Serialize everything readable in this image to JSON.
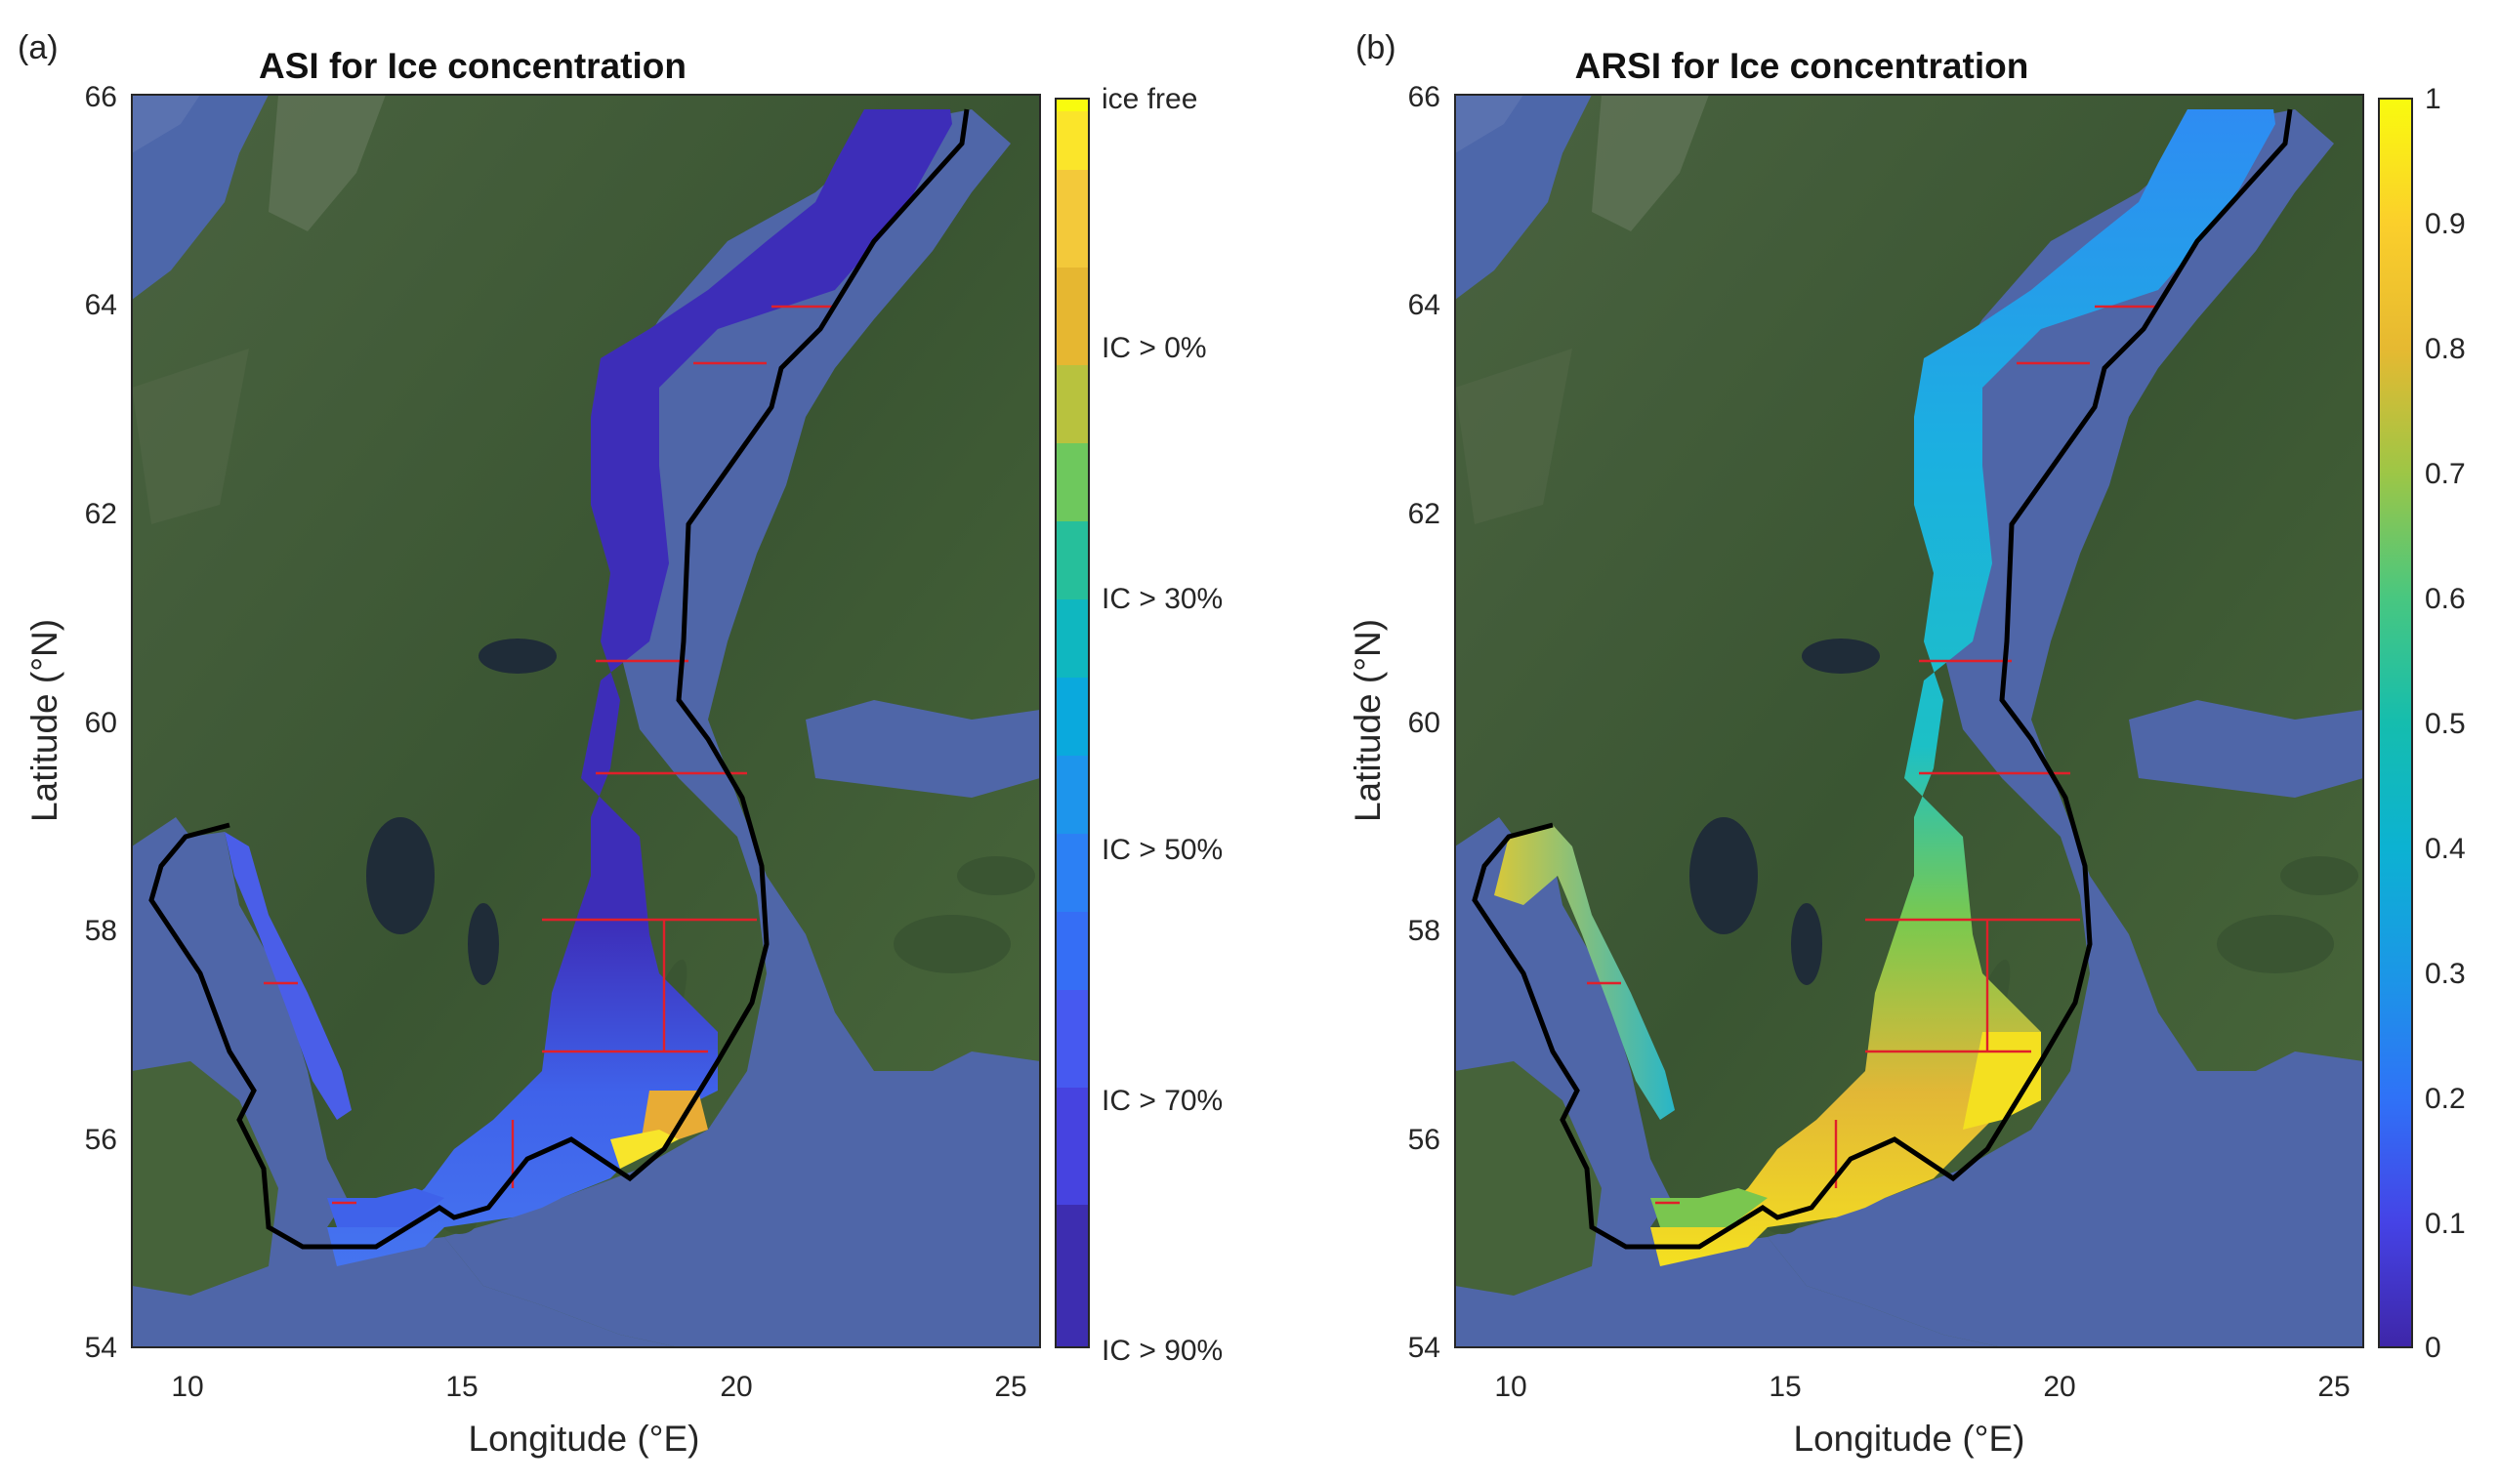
{
  "figure": {
    "panels": [
      {
        "id": "a",
        "panel_label": "(a)",
        "title": "ASI for Ice concentration",
        "xlabel": "Longitude (°E)",
        "ylabel": "Latitude (°N)",
        "x_ticks": [
          "10",
          "15",
          "20",
          "25"
        ],
        "y_ticks": [
          "54",
          "56",
          "58",
          "60",
          "62",
          "64",
          "66"
        ],
        "colorbar": {
          "type": "categorical",
          "labels": [
            "ice free",
            "IC > 0%",
            "IC > 30%",
            "IC > 50%",
            "IC > 70%",
            "IC > 90%"
          ]
        }
      },
      {
        "id": "b",
        "panel_label": "(b)",
        "title": "ARSI for Ice concentration",
        "xlabel": "Longitude (°E)",
        "ylabel": "Latitude (°N)",
        "x_ticks": [
          "10",
          "15",
          "20",
          "25"
        ],
        "y_ticks": [
          "54",
          "56",
          "58",
          "60",
          "62",
          "64",
          "66"
        ],
        "colorbar": {
          "type": "continuous",
          "labels": [
            "1",
            "0.9",
            "0.8",
            "0.7",
            "0.6",
            "0.5",
            "0.4",
            "0.3",
            "0.2",
            "0.1",
            "0"
          ]
        }
      }
    ],
    "colors": {
      "land": "#3f5a34",
      "land_dark": "#2c4226",
      "sea": "#4f66a8",
      "boundary": "#000000",
      "grid_lines": "#e0202a",
      "ice_high": "#3d2db8",
      "ice_mid": "#3f72ef",
      "ice_low": "#e8ac35",
      "ice_very_low": "#f8e52a",
      "arsi_low": "#2ba3f3",
      "arsi_mid": "#7fc64a",
      "arsi_high": "#f1bc36",
      "arsi_max": "#f7ea1c"
    }
  }
}
